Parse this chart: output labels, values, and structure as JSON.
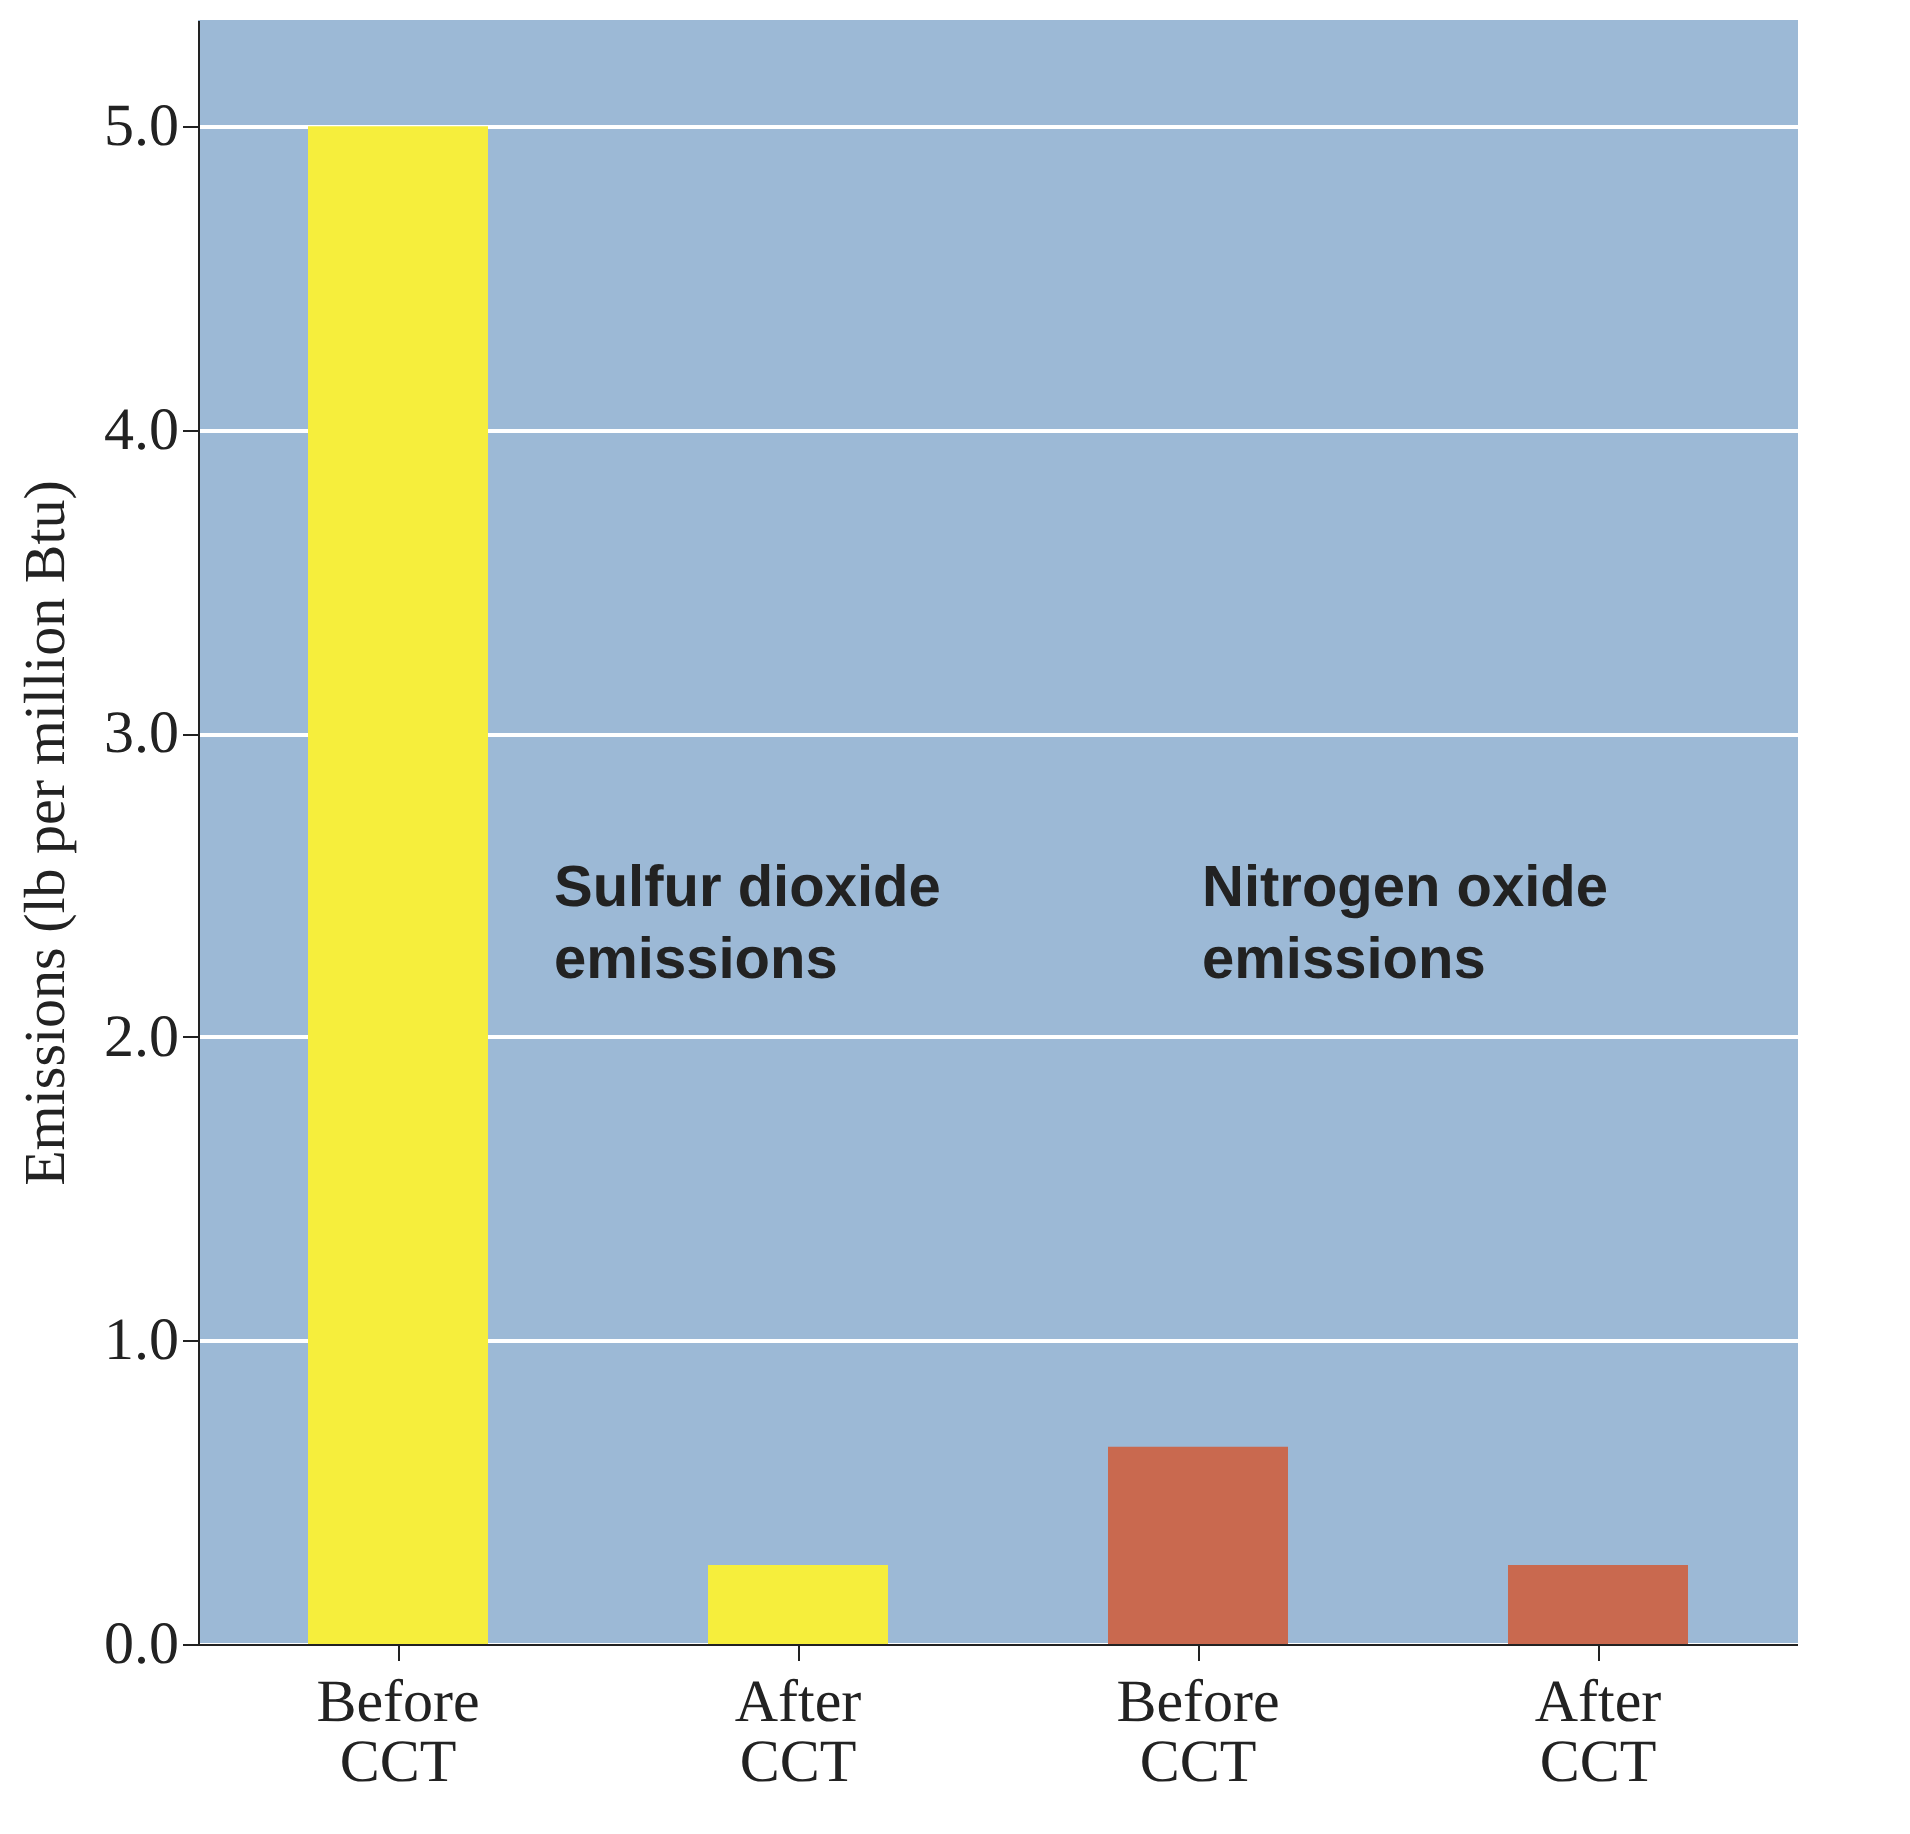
{
  "chart_data": {
    "type": "bar",
    "ylabel": "Emissions (lb per million Btu)",
    "categories": [
      "Before CCT",
      "After CCT",
      "Before CCT",
      "After CCT"
    ],
    "values": [
      5.0,
      0.26,
      0.65,
      0.26
    ],
    "colors": [
      "#f6ee3c",
      "#f6ee3c",
      "#c9694f",
      "#c9694f"
    ],
    "annotations": [
      "Sulfur dioxide emissions",
      "Nitrogen oxide emissions"
    ],
    "ylim": [
      0,
      5.35
    ],
    "yticks": [
      {
        "value": 0,
        "label": "0.0"
      },
      {
        "value": 1,
        "label": "1.0"
      },
      {
        "value": 2,
        "label": "2.0"
      },
      {
        "value": 3,
        "label": "3.0"
      },
      {
        "value": 4,
        "label": "4.0"
      },
      {
        "value": 5,
        "label": "5.0"
      }
    ],
    "grid": "y"
  }
}
